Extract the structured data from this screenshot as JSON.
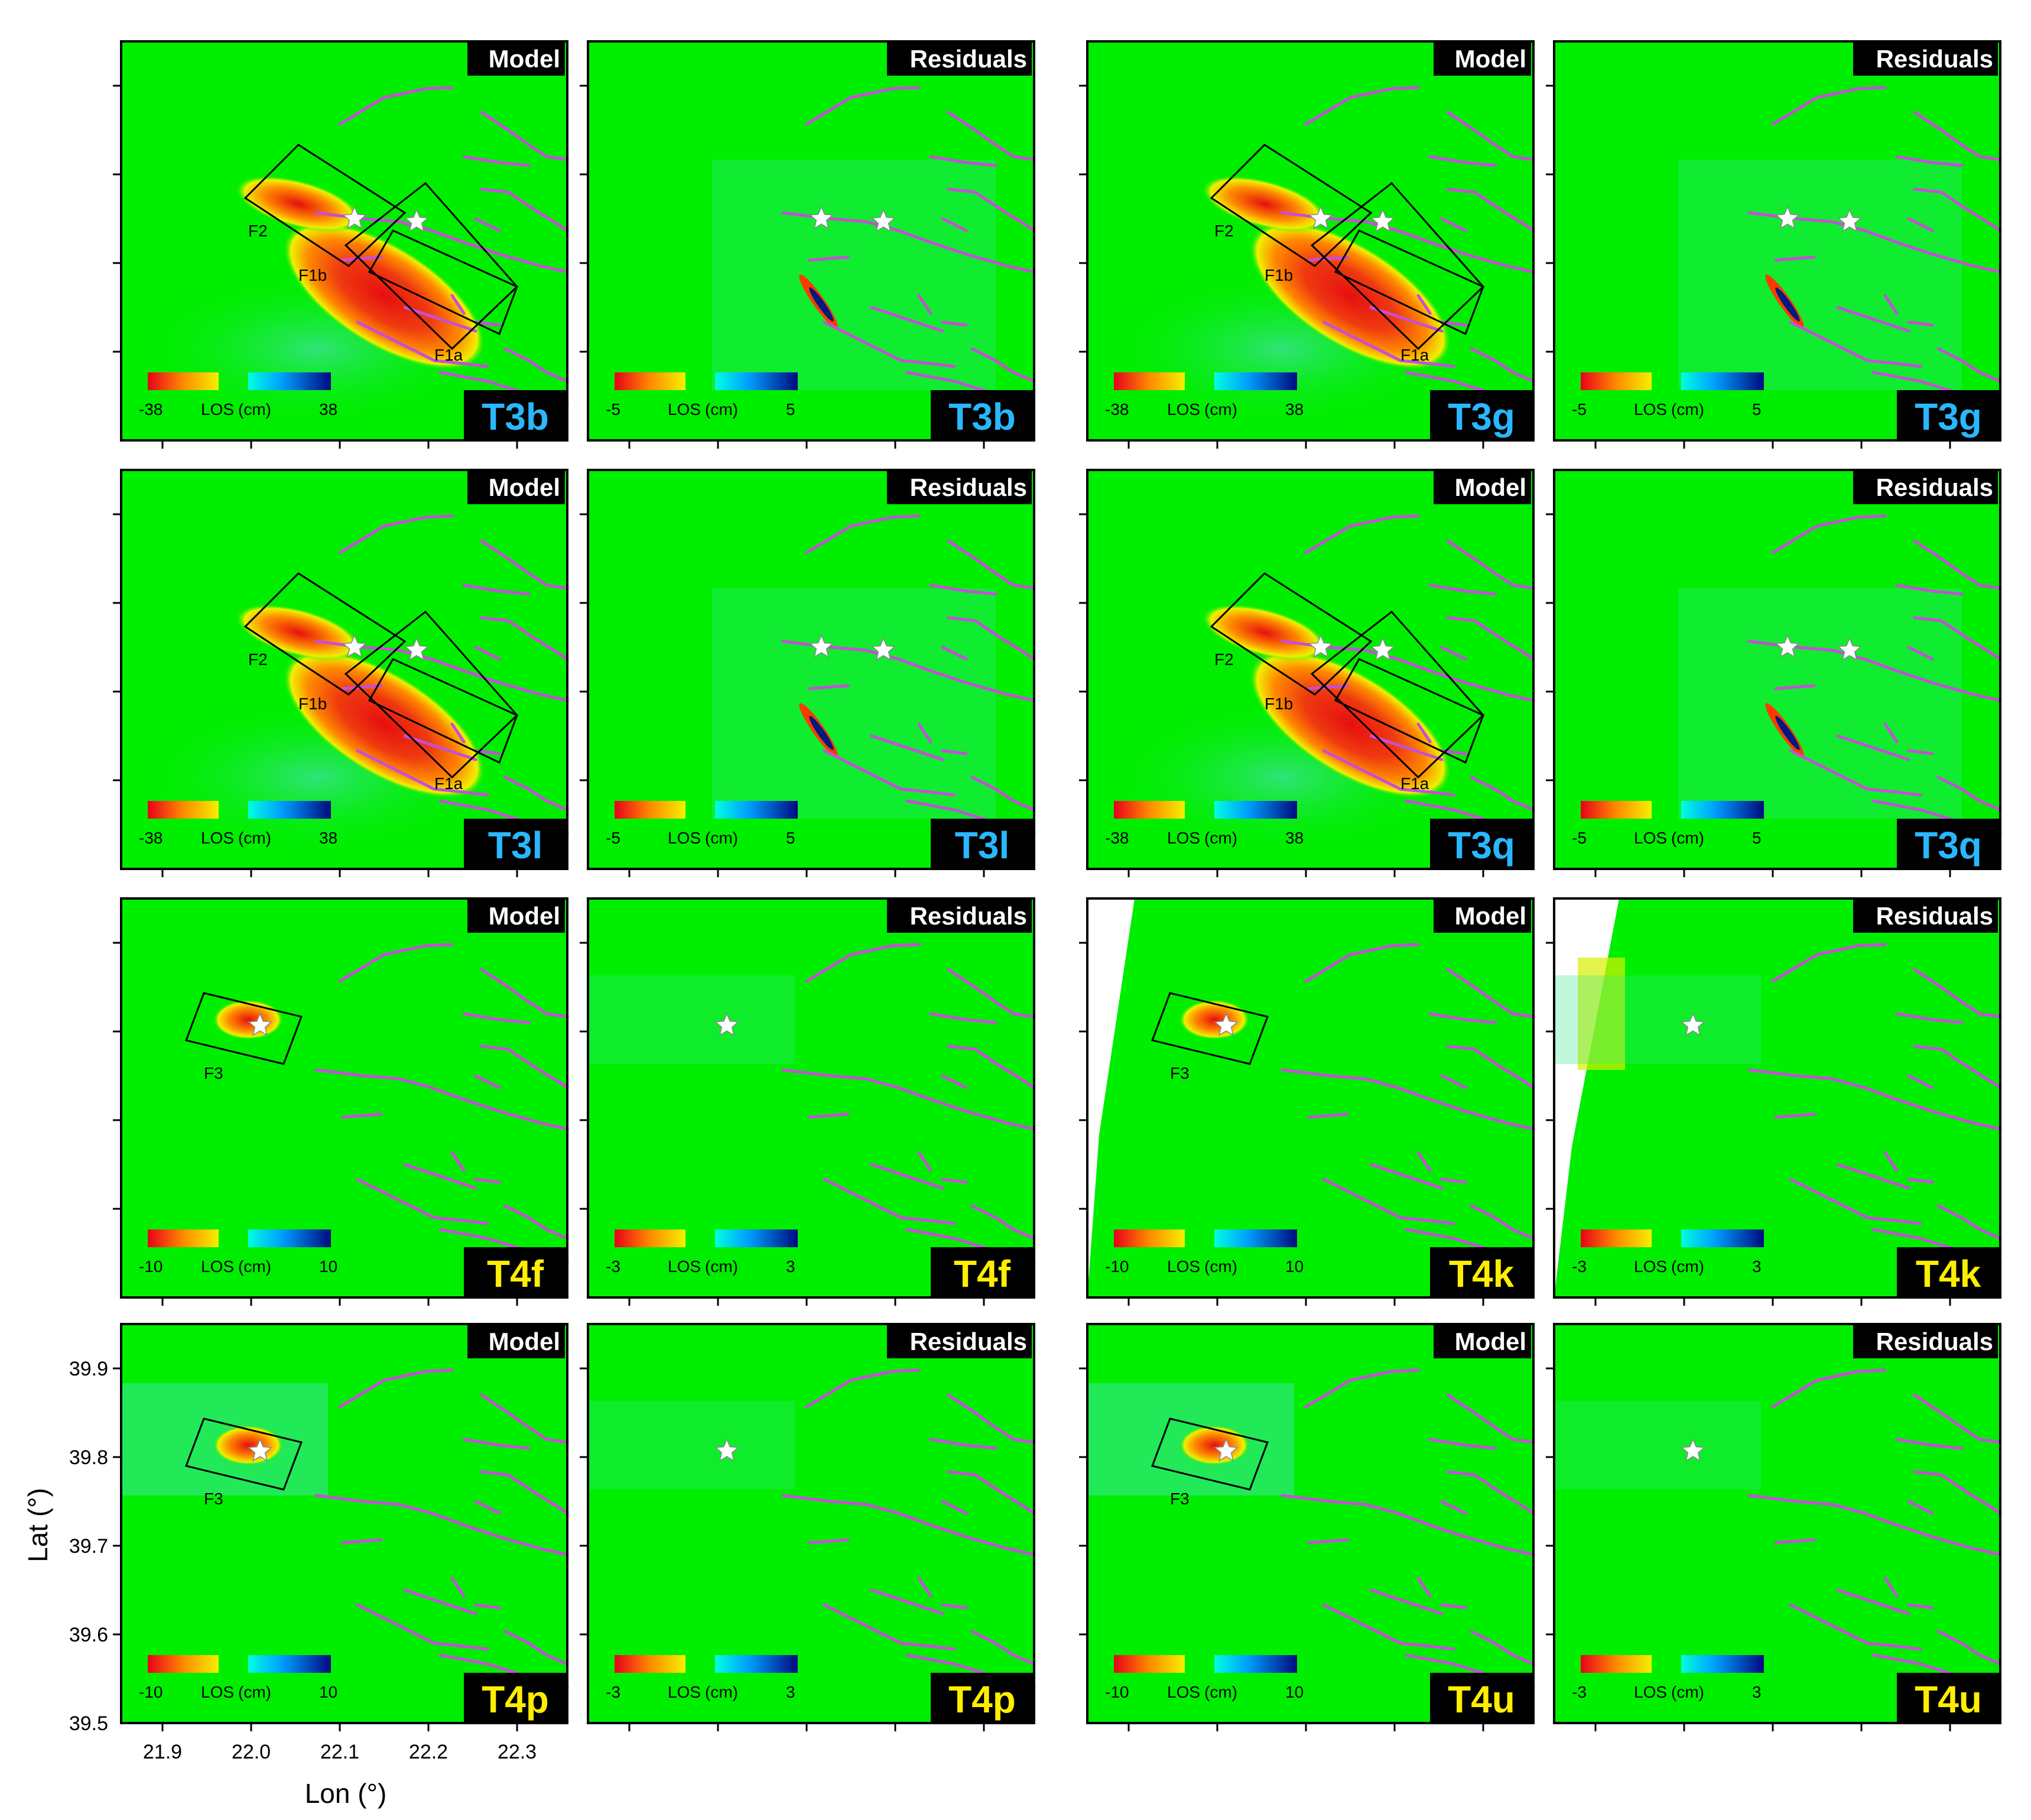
{
  "colors": {
    "background": "#00ee00",
    "fault": "#c64fd6",
    "cyan_label": "#2ab7ff",
    "yellow_label": "#ffee00",
    "tag_bg": "#000000"
  },
  "tags": {
    "model": "Model",
    "residuals": "Residuals"
  },
  "colorbar": {
    "unit_label": "LOS",
    "unit": "(cm)"
  },
  "axes": {
    "xlabel": "Lon (°)",
    "ylabel": "Lat (°)",
    "xticks": [
      "21.9",
      "22.0",
      "22.1",
      "22.2",
      "22.3"
    ],
    "yticks": [
      "39.9",
      "39.8",
      "39.7",
      "39.6",
      "39.5"
    ]
  },
  "fault_segments": {
    "f1a": "F1a",
    "f1b": "F1b",
    "f2": "F2",
    "f3": "F3"
  },
  "rows": [
    {
      "type": "T3",
      "left_track": "T3b",
      "right_track": "T3g",
      "model_range": [
        "-38",
        "38"
      ],
      "resid_range": [
        "-5",
        "5"
      ],
      "right_model_range": [
        "-38",
        "38"
      ],
      "right_resid_range": [
        "-5",
        "5"
      ]
    },
    {
      "type": "T3",
      "left_track": "T3l",
      "right_track": "T3q",
      "model_range": [
        "-38",
        "38"
      ],
      "resid_range": [
        "-5",
        "5"
      ],
      "right_model_range": [
        "-38",
        "38"
      ],
      "right_resid_range": [
        "-5",
        "5"
      ]
    },
    {
      "type": "T4",
      "left_track": "T4f",
      "right_track": "T4k",
      "model_range": [
        "-10",
        "10"
      ],
      "resid_range": [
        "-3",
        "3"
      ],
      "right_model_range": [
        "-10",
        "10"
      ],
      "right_resid_range": [
        "-3",
        "3"
      ]
    },
    {
      "type": "T4",
      "left_track": "T4p",
      "right_track": "T4u",
      "model_range": [
        "-10",
        "10"
      ],
      "resid_range": [
        "-3",
        "3"
      ],
      "right_model_range": [
        "-10",
        "10"
      ],
      "right_resid_range": [
        "-3",
        "3"
      ]
    }
  ]
}
